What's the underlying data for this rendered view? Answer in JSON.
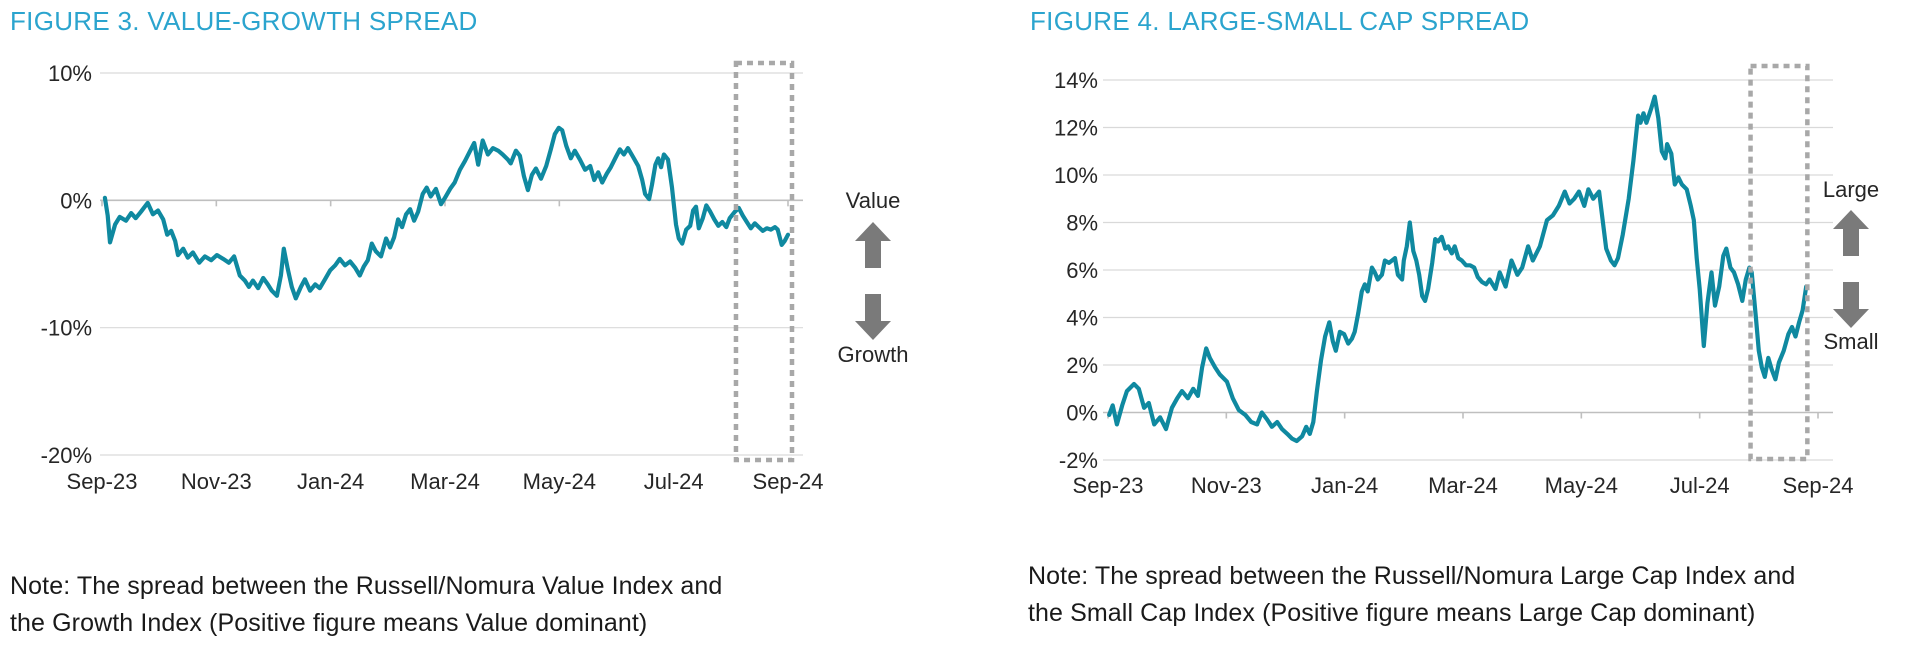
{
  "colors": {
    "title": "#2BA4CE",
    "line": "#0F89A0",
    "grid": "#D9D9D9",
    "axis": "#BFBFBF",
    "tick_text": "#262626",
    "note_text": "#1A1A1A",
    "box": "#A8A8A8",
    "arrow": "#7A7A7A"
  },
  "figure3": {
    "title": "FIGURE 3. VALUE-GROWTH SPREAD",
    "side_top": "Value",
    "side_bottom": "Growth",
    "note_line1": "Note: The spread between the Russell/Nomura Value Index and",
    "note_line2": "the Growth Index (Positive figure means Value dominant)",
    "chart_data": {
      "type": "line",
      "x_tick_labels": [
        "Sep-23",
        "Nov-23",
        "Jan-24",
        "Mar-24",
        "May-24",
        "Jul-24",
        "Sep-24"
      ],
      "y_tick_labels": [
        "10%",
        "0%",
        "-10%",
        "-20%"
      ],
      "y_max": 10,
      "y_min": -20,
      "y_step": 10,
      "x_range_months": [
        0,
        12
      ],
      "grid": "horizontal",
      "highlight_box_months": [
        11.09,
        12.07
      ],
      "series": [
        [
          0.05,
          0.2
        ],
        [
          0.1,
          -1.2
        ],
        [
          0.14,
          -3.3
        ],
        [
          0.23,
          -1.9
        ],
        [
          0.31,
          -1.3
        ],
        [
          0.42,
          -1.6
        ],
        [
          0.51,
          -1.0
        ],
        [
          0.59,
          -1.4
        ],
        [
          0.68,
          -0.9
        ],
        [
          0.8,
          -0.2
        ],
        [
          0.89,
          -1.1
        ],
        [
          0.98,
          -0.8
        ],
        [
          1.07,
          -1.5
        ],
        [
          1.14,
          -2.7
        ],
        [
          1.21,
          -2.4
        ],
        [
          1.28,
          -3.2
        ],
        [
          1.33,
          -4.3
        ],
        [
          1.42,
          -3.8
        ],
        [
          1.5,
          -4.5
        ],
        [
          1.59,
          -4.1
        ],
        [
          1.7,
          -4.9
        ],
        [
          1.8,
          -4.4
        ],
        [
          1.91,
          -4.7
        ],
        [
          2.01,
          -4.3
        ],
        [
          2.12,
          -4.6
        ],
        [
          2.22,
          -4.9
        ],
        [
          2.31,
          -4.4
        ],
        [
          2.41,
          -5.9
        ],
        [
          2.5,
          -6.3
        ],
        [
          2.57,
          -6.8
        ],
        [
          2.64,
          -6.3
        ],
        [
          2.73,
          -6.9
        ],
        [
          2.82,
          -6.1
        ],
        [
          2.9,
          -6.6
        ],
        [
          2.97,
          -7.1
        ],
        [
          3.06,
          -7.5
        ],
        [
          3.13,
          -5.9
        ],
        [
          3.18,
          -3.8
        ],
        [
          3.25,
          -5.4
        ],
        [
          3.32,
          -6.8
        ],
        [
          3.39,
          -7.7
        ],
        [
          3.48,
          -6.8
        ],
        [
          3.55,
          -6.2
        ],
        [
          3.64,
          -7.1
        ],
        [
          3.73,
          -6.6
        ],
        [
          3.81,
          -6.9
        ],
        [
          3.9,
          -6.2
        ],
        [
          3.99,
          -5.5
        ],
        [
          4.08,
          -5.1
        ],
        [
          4.16,
          -4.6
        ],
        [
          4.25,
          -5.1
        ],
        [
          4.34,
          -4.8
        ],
        [
          4.43,
          -5.3
        ],
        [
          4.51,
          -5.9
        ],
        [
          4.58,
          -5.2
        ],
        [
          4.65,
          -4.7
        ],
        [
          4.72,
          -3.4
        ],
        [
          4.79,
          -4.0
        ],
        [
          4.88,
          -4.4
        ],
        [
          4.97,
          -3.0
        ],
        [
          5.04,
          -3.7
        ],
        [
          5.11,
          -2.9
        ],
        [
          5.18,
          -1.5
        ],
        [
          5.25,
          -2.1
        ],
        [
          5.32,
          -1.1
        ],
        [
          5.39,
          -0.7
        ],
        [
          5.46,
          -1.6
        ],
        [
          5.53,
          -0.9
        ],
        [
          5.61,
          0.5
        ],
        [
          5.68,
          1.0
        ],
        [
          5.75,
          0.3
        ],
        [
          5.84,
          0.9
        ],
        [
          5.93,
          -0.3
        ],
        [
          6.0,
          0.2
        ],
        [
          6.09,
          0.9
        ],
        [
          6.17,
          1.4
        ],
        [
          6.26,
          2.4
        ],
        [
          6.35,
          3.1
        ],
        [
          6.44,
          3.9
        ],
        [
          6.51,
          4.5
        ],
        [
          6.58,
          2.8
        ],
        [
          6.66,
          4.7
        ],
        [
          6.75,
          3.6
        ],
        [
          6.84,
          4.1
        ],
        [
          6.93,
          3.9
        ],
        [
          7.01,
          3.6
        ],
        [
          7.1,
          3.2
        ],
        [
          7.15,
          2.9
        ],
        [
          7.24,
          3.9
        ],
        [
          7.31,
          3.5
        ],
        [
          7.38,
          1.9
        ],
        [
          7.45,
          0.8
        ],
        [
          7.52,
          2.0
        ],
        [
          7.59,
          2.5
        ],
        [
          7.68,
          1.7
        ],
        [
          7.77,
          2.7
        ],
        [
          7.85,
          4.0
        ],
        [
          7.92,
          5.2
        ],
        [
          7.99,
          5.7
        ],
        [
          8.05,
          5.5
        ],
        [
          8.12,
          4.3
        ],
        [
          8.2,
          3.3
        ],
        [
          8.27,
          3.9
        ],
        [
          8.36,
          3.2
        ],
        [
          8.45,
          2.4
        ],
        [
          8.54,
          2.7
        ],
        [
          8.61,
          1.6
        ],
        [
          8.68,
          2.2
        ],
        [
          8.75,
          1.4
        ],
        [
          8.83,
          2.1
        ],
        [
          8.9,
          2.6
        ],
        [
          8.99,
          3.4
        ],
        [
          9.06,
          4.0
        ],
        [
          9.13,
          3.6
        ],
        [
          9.2,
          4.1
        ],
        [
          9.29,
          3.4
        ],
        [
          9.38,
          2.7
        ],
        [
          9.45,
          1.6
        ],
        [
          9.5,
          0.5
        ],
        [
          9.57,
          0.1
        ],
        [
          9.62,
          1.2
        ],
        [
          9.68,
          2.8
        ],
        [
          9.73,
          3.3
        ],
        [
          9.78,
          2.6
        ],
        [
          9.83,
          3.6
        ],
        [
          9.9,
          3.2
        ],
        [
          9.97,
          1.0
        ],
        [
          10.04,
          -1.9
        ],
        [
          10.09,
          -3.0
        ],
        [
          10.15,
          -3.4
        ],
        [
          10.22,
          -2.3
        ],
        [
          10.29,
          -2.0
        ],
        [
          10.34,
          -0.8
        ],
        [
          10.39,
          -0.5
        ],
        [
          10.44,
          -2.2
        ],
        [
          10.51,
          -1.4
        ],
        [
          10.57,
          -0.4
        ],
        [
          10.64,
          -0.9
        ],
        [
          10.71,
          -1.5
        ],
        [
          10.78,
          -2.0
        ],
        [
          10.85,
          -1.7
        ],
        [
          10.92,
          -2.1
        ],
        [
          10.98,
          -1.4
        ],
        [
          11.07,
          -0.9
        ],
        [
          11.14,
          -0.6
        ],
        [
          11.21,
          -1.2
        ],
        [
          11.28,
          -1.7
        ],
        [
          11.35,
          -2.2
        ],
        [
          11.42,
          -1.8
        ],
        [
          11.49,
          -2.1
        ],
        [
          11.56,
          -2.4
        ],
        [
          11.63,
          -2.2
        ],
        [
          11.7,
          -2.3
        ],
        [
          11.77,
          -2.1
        ],
        [
          11.82,
          -2.3
        ],
        [
          11.89,
          -3.5
        ],
        [
          11.94,
          -3.2
        ],
        [
          12.0,
          -2.7
        ]
      ]
    }
  },
  "figure4": {
    "title": "FIGURE 4. LARGE-SMALL CAP SPREAD",
    "side_top": "Large",
    "side_bottom": "Small",
    "note_line1": "Note: The spread between the Russell/Nomura Large Cap Index and",
    "note_line2": "the Small Cap Index (Positive figure means Large Cap dominant)",
    "chart_data": {
      "type": "line",
      "x_tick_labels": [
        "Sep-23",
        "Nov-23",
        "Jan-24",
        "Mar-24",
        "May-24",
        "Jul-24",
        "Sep-24"
      ],
      "y_tick_labels": [
        "14%",
        "12%",
        "10%",
        "8%",
        "6%",
        "4%",
        "2%",
        "0%",
        "-2%"
      ],
      "y_max": 14,
      "y_min": -2,
      "y_step": 2,
      "x_range_months": [
        0,
        12
      ],
      "grid": "horizontal",
      "highlight_box_months": [
        10.86,
        11.82
      ],
      "series": [
        [
          0.02,
          -0.1
        ],
        [
          0.08,
          0.3
        ],
        [
          0.15,
          -0.5
        ],
        [
          0.24,
          0.3
        ],
        [
          0.32,
          0.9
        ],
        [
          0.44,
          1.2
        ],
        [
          0.52,
          1.0
        ],
        [
          0.61,
          0.2
        ],
        [
          0.69,
          0.4
        ],
        [
          0.78,
          -0.5
        ],
        [
          0.88,
          -0.2
        ],
        [
          0.98,
          -0.7
        ],
        [
          1.08,
          0.2
        ],
        [
          1.17,
          0.6
        ],
        [
          1.25,
          0.9
        ],
        [
          1.35,
          0.6
        ],
        [
          1.44,
          1.0
        ],
        [
          1.52,
          0.7
        ],
        [
          1.59,
          1.9
        ],
        [
          1.66,
          2.7
        ],
        [
          1.72,
          2.3
        ],
        [
          1.81,
          1.9
        ],
        [
          1.89,
          1.6
        ],
        [
          2.01,
          1.3
        ],
        [
          2.11,
          0.6
        ],
        [
          2.21,
          0.1
        ],
        [
          2.32,
          -0.1
        ],
        [
          2.42,
          -0.4
        ],
        [
          2.52,
          -0.5
        ],
        [
          2.6,
          0.0
        ],
        [
          2.69,
          -0.3
        ],
        [
          2.77,
          -0.6
        ],
        [
          2.86,
          -0.4
        ],
        [
          2.94,
          -0.7
        ],
        [
          3.03,
          -0.9
        ],
        [
          3.11,
          -1.1
        ],
        [
          3.19,
          -1.2
        ],
        [
          3.28,
          -1.0
        ],
        [
          3.35,
          -0.6
        ],
        [
          3.41,
          -0.9
        ],
        [
          3.47,
          -0.4
        ],
        [
          3.53,
          0.9
        ],
        [
          3.6,
          2.2
        ],
        [
          3.67,
          3.2
        ],
        [
          3.74,
          3.8
        ],
        [
          3.8,
          3.0
        ],
        [
          3.85,
          2.6
        ],
        [
          3.92,
          3.4
        ],
        [
          3.99,
          3.3
        ],
        [
          4.06,
          2.9
        ],
        [
          4.12,
          3.1
        ],
        [
          4.17,
          3.4
        ],
        [
          4.23,
          4.2
        ],
        [
          4.29,
          5.1
        ],
        [
          4.34,
          5.4
        ],
        [
          4.39,
          5.1
        ],
        [
          4.46,
          6.1
        ],
        [
          4.51,
          5.9
        ],
        [
          4.56,
          5.6
        ],
        [
          4.63,
          5.8
        ],
        [
          4.68,
          6.4
        ],
        [
          4.75,
          6.3
        ],
        [
          4.8,
          6.4
        ],
        [
          4.85,
          6.5
        ],
        [
          4.9,
          5.8
        ],
        [
          4.97,
          5.6
        ],
        [
          5.0,
          6.4
        ],
        [
          5.05,
          7.0
        ],
        [
          5.1,
          8.0
        ],
        [
          5.16,
          6.8
        ],
        [
          5.21,
          6.4
        ],
        [
          5.26,
          5.8
        ],
        [
          5.31,
          4.9
        ],
        [
          5.36,
          4.7
        ],
        [
          5.41,
          5.2
        ],
        [
          5.48,
          6.3
        ],
        [
          5.53,
          7.3
        ],
        [
          5.58,
          7.2
        ],
        [
          5.64,
          7.4
        ],
        [
          5.7,
          6.9
        ],
        [
          5.75,
          7.0
        ],
        [
          5.81,
          6.7
        ],
        [
          5.86,
          7.0
        ],
        [
          5.92,
          6.5
        ],
        [
          5.98,
          6.4
        ],
        [
          6.05,
          6.2
        ],
        [
          6.12,
          6.2
        ],
        [
          6.19,
          6.1
        ],
        [
          6.25,
          5.7
        ],
        [
          6.32,
          5.5
        ],
        [
          6.39,
          5.4
        ],
        [
          6.45,
          5.6
        ],
        [
          6.55,
          5.2
        ],
        [
          6.62,
          5.9
        ],
        [
          6.72,
          5.3
        ],
        [
          6.82,
          6.4
        ],
        [
          6.92,
          5.8
        ],
        [
          7.0,
          6.1
        ],
        [
          7.1,
          7.0
        ],
        [
          7.18,
          6.4
        ],
        [
          7.3,
          7.0
        ],
        [
          7.42,
          8.1
        ],
        [
          7.52,
          8.3
        ],
        [
          7.62,
          8.7
        ],
        [
          7.72,
          9.3
        ],
        [
          7.8,
          8.8
        ],
        [
          7.88,
          9.0
        ],
        [
          7.96,
          9.3
        ],
        [
          8.05,
          8.7
        ],
        [
          8.12,
          9.4
        ],
        [
          8.2,
          9.0
        ],
        [
          8.3,
          9.3
        ],
        [
          8.42,
          6.9
        ],
        [
          8.5,
          6.4
        ],
        [
          8.56,
          6.2
        ],
        [
          8.62,
          6.5
        ],
        [
          8.7,
          7.5
        ],
        [
          8.8,
          9.0
        ],
        [
          8.88,
          10.6
        ],
        [
          8.96,
          12.5
        ],
        [
          9.0,
          12.2
        ],
        [
          9.05,
          12.6
        ],
        [
          9.1,
          12.2
        ],
        [
          9.18,
          12.8
        ],
        [
          9.24,
          13.3
        ],
        [
          9.3,
          12.4
        ],
        [
          9.36,
          11.0
        ],
        [
          9.42,
          10.7
        ],
        [
          9.45,
          11.3
        ],
        [
          9.52,
          10.9
        ],
        [
          9.58,
          9.6
        ],
        [
          9.64,
          9.9
        ],
        [
          9.7,
          9.6
        ],
        [
          9.78,
          9.4
        ],
        [
          9.85,
          8.7
        ],
        [
          9.9,
          8.1
        ],
        [
          9.95,
          6.5
        ],
        [
          10.0,
          5.2
        ],
        [
          10.07,
          2.8
        ],
        [
          10.13,
          4.6
        ],
        [
          10.2,
          5.9
        ],
        [
          10.26,
          4.5
        ],
        [
          10.33,
          5.3
        ],
        [
          10.4,
          6.6
        ],
        [
          10.45,
          6.9
        ],
        [
          10.52,
          6.1
        ],
        [
          10.58,
          5.9
        ],
        [
          10.65,
          5.4
        ],
        [
          10.72,
          4.7
        ],
        [
          10.78,
          5.6
        ],
        [
          10.84,
          6.1
        ],
        [
          10.88,
          5.9
        ],
        [
          10.95,
          4.0
        ],
        [
          11.0,
          2.6
        ],
        [
          11.05,
          1.9
        ],
        [
          11.1,
          1.5
        ],
        [
          11.16,
          2.3
        ],
        [
          11.22,
          1.8
        ],
        [
          11.28,
          1.4
        ],
        [
          11.34,
          2.1
        ],
        [
          11.42,
          2.6
        ],
        [
          11.5,
          3.3
        ],
        [
          11.56,
          3.6
        ],
        [
          11.62,
          3.2
        ],
        [
          11.68,
          3.8
        ],
        [
          11.74,
          4.3
        ],
        [
          11.8,
          5.3
        ]
      ]
    }
  }
}
